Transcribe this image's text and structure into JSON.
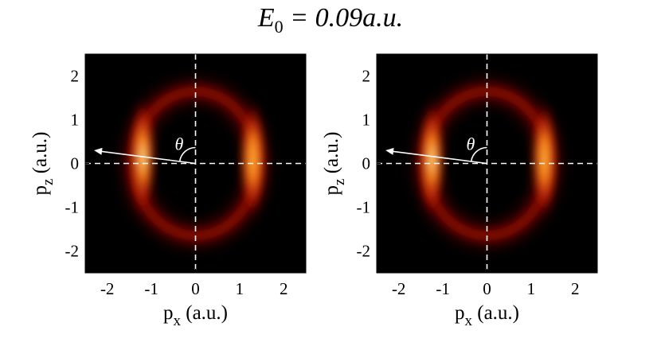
{
  "figure": {
    "title_symbol": "E",
    "title_subscript": "0",
    "title_rest": " = 0.09a.u."
  },
  "chart_data": [
    {
      "type": "heatmap",
      "title": "",
      "xlabel": "p_x (a.u.)",
      "ylabel": "p_z (a.u.)",
      "xlabel_main": "p",
      "xlabel_sub": "x",
      "xlabel_unit": " (a.u.)",
      "ylabel_main": "p",
      "ylabel_sub": "z",
      "ylabel_unit": " (a.u.)",
      "xlim": [
        -2.5,
        2.5
      ],
      "ylim": [
        -2.5,
        2.5
      ],
      "xticks": [
        -2,
        -1,
        0,
        1,
        2
      ],
      "yticks": [
        2,
        1,
        0,
        -1,
        -2
      ],
      "xtick_labels": [
        "-2",
        "-1",
        "0",
        "1",
        "2"
      ],
      "ytick_labels": [
        "2",
        "1",
        "0",
        "-1",
        "-2"
      ],
      "colormap": "hot",
      "background": "#000000",
      "ring": {
        "center": [
          0,
          0
        ],
        "radius_x": 1.4,
        "radius_z": 1.65
      },
      "bright_lobes": [
        {
          "px": -1.2,
          "pz": 0.15,
          "intensity": 1.0
        },
        {
          "px": 1.3,
          "pz": 0.1,
          "intensity": 0.75
        }
      ],
      "guides": {
        "dashed_lines": [
          {
            "axis": "x",
            "value": 0
          },
          {
            "axis": "y",
            "value": 0
          }
        ],
        "color": "#ffffff"
      },
      "arrow": {
        "from": [
          0,
          0
        ],
        "to": [
          -2.3,
          0.3
        ],
        "color": "#ffffff"
      },
      "angle_label": "θ"
    },
    {
      "type": "heatmap",
      "title": "",
      "xlabel": "p_x (a.u.)",
      "ylabel": "p_z (a.u.)",
      "xlabel_main": "p",
      "xlabel_sub": "x",
      "xlabel_unit": " (a.u.)",
      "ylabel_main": "p",
      "ylabel_sub": "z",
      "ylabel_unit": " (a.u.)",
      "xlim": [
        -2.5,
        2.5
      ],
      "ylim": [
        -2.5,
        2.5
      ],
      "xticks": [
        -2,
        -1,
        0,
        1,
        2
      ],
      "yticks": [
        2,
        1,
        0,
        -1,
        -2
      ],
      "xtick_labels": [
        "-2",
        "-1",
        "0",
        "1",
        "2"
      ],
      "ytick_labels": [
        "2",
        "1",
        "0",
        "-1",
        "-2"
      ],
      "colormap": "hot",
      "background": "#000000",
      "ring": {
        "center": [
          0,
          0
        ],
        "radius_x": 1.4,
        "radius_z": 1.65
      },
      "bright_lobes": [
        {
          "px": -1.25,
          "pz": 0.1,
          "intensity": 1.0
        },
        {
          "px": 1.3,
          "pz": 0.1,
          "intensity": 0.8
        }
      ],
      "guides": {
        "dashed_lines": [
          {
            "axis": "x",
            "value": 0
          },
          {
            "axis": "y",
            "value": 0
          }
        ],
        "color": "#ffffff"
      },
      "arrow": {
        "from": [
          0,
          0
        ],
        "to": [
          -2.3,
          0.3
        ],
        "color": "#ffffff"
      },
      "angle_label": "θ"
    }
  ]
}
